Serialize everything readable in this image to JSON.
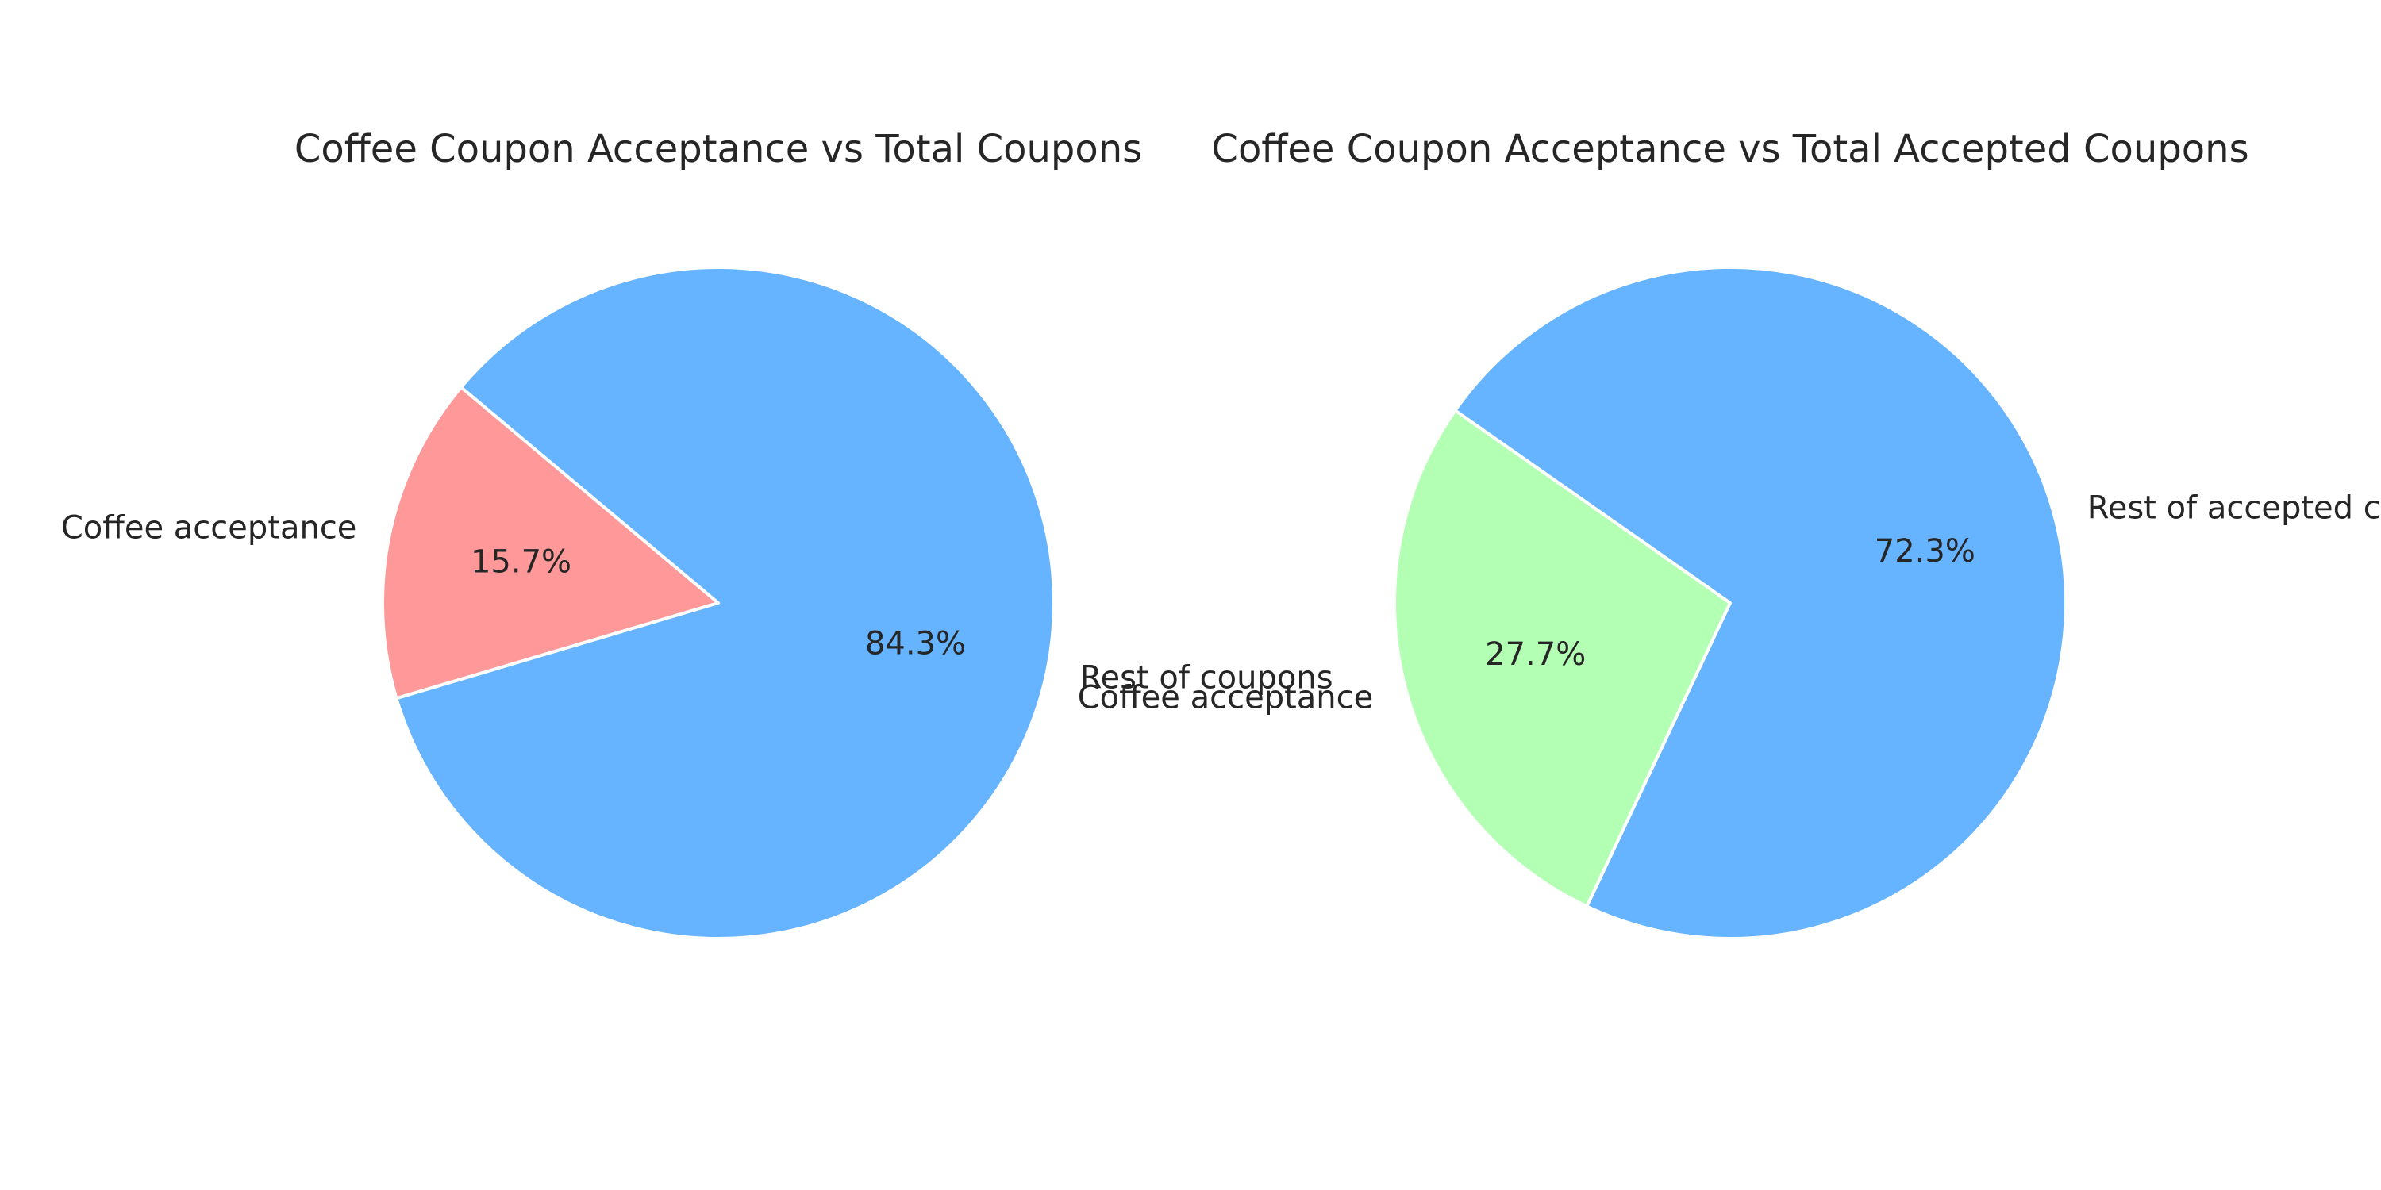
{
  "chart_data": [
    {
      "type": "pie",
      "title": "Coffee Coupon Acceptance vs Total Coupons",
      "slices": [
        {
          "label": "Coffee acceptance",
          "value": 15.7,
          "pct_label": "15.7%",
          "color": "#ff9999"
        },
        {
          "label": "Rest of coupons",
          "value": 84.3,
          "pct_label": "84.3%",
          "color": "#66b3ff"
        }
      ]
    },
    {
      "type": "pie",
      "title": "Coffee Coupon Acceptance vs Total Accepted Coupons",
      "slices": [
        {
          "label": "Coffee acceptance",
          "value": 27.7,
          "pct_label": "27.7%",
          "color": "#b3ffb3"
        },
        {
          "label": "Rest of accepted coupons",
          "value": 72.3,
          "pct_label": "72.3%",
          "color": "#66b3ff"
        }
      ]
    }
  ]
}
